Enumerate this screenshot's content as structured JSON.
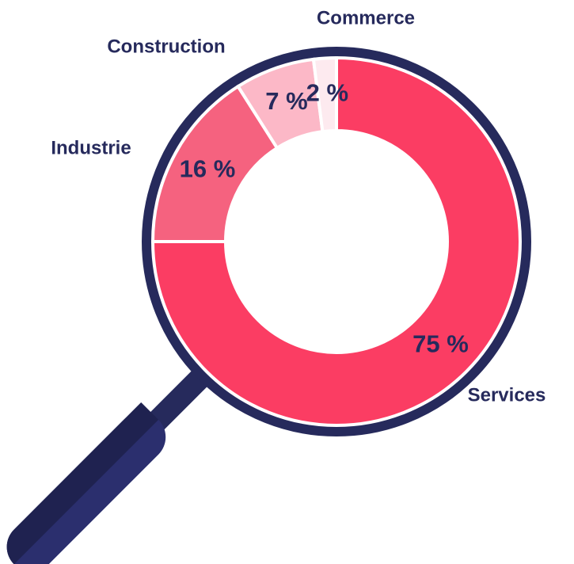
{
  "chart_data": {
    "type": "pie",
    "donut": true,
    "categories": [
      "Services",
      "Industrie",
      "Construction",
      "Commerce"
    ],
    "values": [
      75,
      16,
      7,
      2
    ],
    "value_labels": [
      "75 %",
      "16 %",
      "7 %",
      "2 %"
    ],
    "colors": [
      "#fb3d63",
      "#f5627f",
      "#fcb8c7",
      "#fdeaef"
    ]
  }
}
